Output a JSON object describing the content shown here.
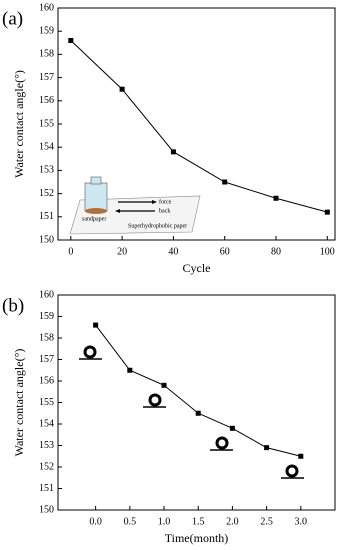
{
  "chart_data": [
    {
      "type": "line",
      "title": "(a)",
      "x_label": "Cycle",
      "y_label": "Water contact angle(°)",
      "x": [
        0,
        20,
        40,
        60,
        80,
        100
      ],
      "values": [
        158.6,
        156.5,
        153.8,
        152.5,
        151.8,
        151.2
      ],
      "color": "#000000",
      "marker": "square",
      "xlim": [
        -5,
        103
      ],
      "xticks": [
        0,
        20,
        40,
        60,
        80,
        100
      ],
      "ylim": [
        150,
        160
      ],
      "yticks": [
        150,
        151,
        152,
        153,
        154,
        155,
        156,
        157,
        158,
        159,
        160
      ],
      "inset_labels": [
        "force",
        "back",
        "sandpaper",
        "Superhydrophobic paper"
      ]
    },
    {
      "type": "line",
      "title": "(b)",
      "x_label": "Time(month)",
      "y_label": "Water contact angle(°)",
      "x": [
        0,
        0.5,
        1,
        1.5,
        2,
        2.5,
        3
      ],
      "values": [
        158.6,
        156.5,
        155.8,
        154.5,
        153.8,
        152.9,
        152.5
      ],
      "color": "#000000",
      "marker": "square",
      "xlim": [
        -0.55,
        3.5
      ],
      "xticks": [
        {
          "value": 0,
          "label": "0.0"
        },
        0.5,
        {
          "value": 1,
          "label": "1.0"
        },
        1.5,
        {
          "value": 2,
          "label": "2.0"
        },
        2.5,
        {
          "value": 3,
          "label": "3.0"
        }
      ],
      "ylim": [
        150,
        160
      ],
      "yticks": [
        150,
        151,
        152,
        153,
        154,
        155,
        156,
        157,
        158,
        159,
        160
      ]
    }
  ]
}
